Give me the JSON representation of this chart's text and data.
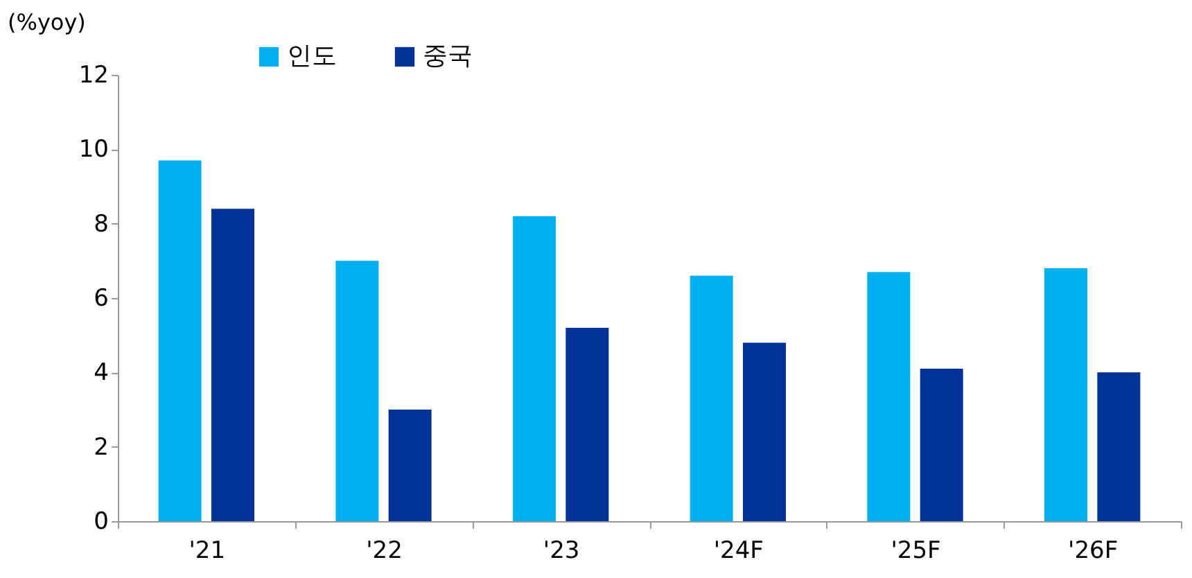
{
  "chart_data": {
    "type": "bar",
    "ylabel": "(%yoy)",
    "categories": [
      "'21",
      "'22",
      "'23",
      "'24F",
      "'25F",
      "'26F"
    ],
    "series": [
      {
        "name": "인도",
        "color": "#00b0f0",
        "values": [
          9.7,
          7.0,
          8.2,
          6.6,
          6.7,
          6.8
        ]
      },
      {
        "name": "중국",
        "color": "#003399",
        "values": [
          8.4,
          3.0,
          5.2,
          4.8,
          4.1,
          4.0
        ]
      }
    ],
    "ylim": [
      0,
      12
    ],
    "yticks": [
      0,
      2,
      4,
      6,
      8,
      10,
      12
    ],
    "grid": false,
    "legend": "top left"
  }
}
